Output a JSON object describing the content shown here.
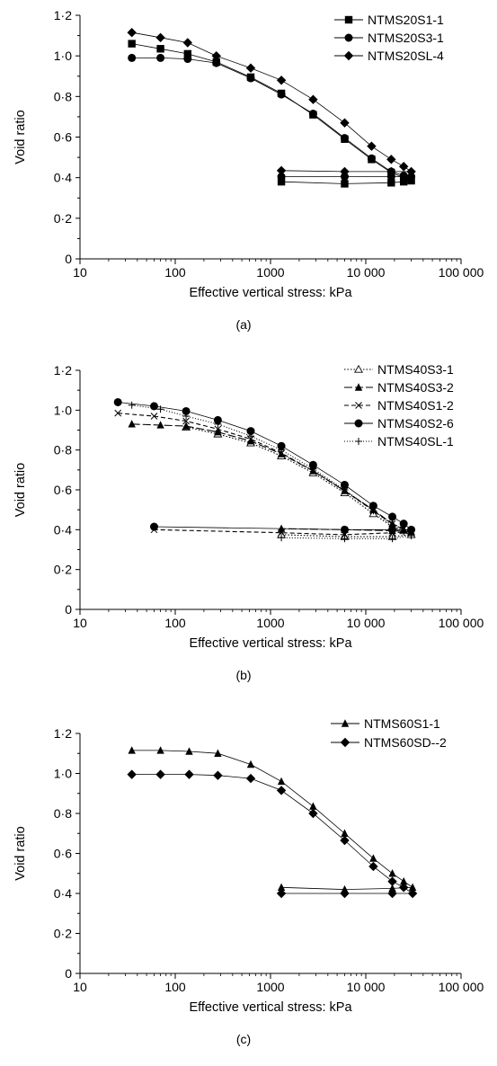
{
  "chart_data": [
    {
      "type": "line",
      "panel_label": "(a)",
      "xlabel": "Effective vertical stress: kPa",
      "ylabel": "Void ratio",
      "x_scale": "log",
      "xlim": [
        10,
        100000
      ],
      "ylim": [
        0,
        1.2
      ],
      "x_ticks": [
        10,
        100,
        1000,
        10000,
        100000
      ],
      "x_tick_labels": [
        "10",
        "100",
        "1000",
        "10 000",
        "100 000"
      ],
      "y_ticks": [
        0,
        0.2,
        0.4,
        0.6,
        0.8,
        1.0,
        1.2
      ],
      "y_tick_labels": [
        "0",
        "0·2",
        "0·4",
        "0·6",
        "0·8",
        "1·0",
        "1·2"
      ],
      "legend_position": "top-right",
      "grid": false,
      "series": [
        {
          "name": "NTMS20S1-1",
          "marker": "square",
          "dash": "",
          "points": [
            [
              35,
              1.06
            ],
            [
              70,
              1.035
            ],
            [
              135,
              1.01
            ],
            [
              270,
              0.97
            ],
            [
              620,
              0.895
            ],
            [
              1300,
              0.815
            ],
            [
              2800,
              0.71
            ],
            [
              6000,
              0.59
            ],
            [
              11500,
              0.49
            ],
            [
              18500,
              0.425
            ],
            [
              25000,
              0.4
            ],
            [
              30000,
              0.385
            ],
            [
              25000,
              0.38
            ],
            [
              18500,
              0.375
            ],
            [
              6000,
              0.37
            ],
            [
              1300,
              0.38
            ]
          ]
        },
        {
          "name": "NTMS20S3-1",
          "marker": "circle",
          "dash": "",
          "points": [
            [
              35,
              0.99
            ],
            [
              70,
              0.99
            ],
            [
              135,
              0.985
            ],
            [
              270,
              0.965
            ],
            [
              620,
              0.89
            ],
            [
              1300,
              0.81
            ],
            [
              2800,
              0.715
            ],
            [
              6000,
              0.595
            ],
            [
              11500,
              0.495
            ],
            [
              18500,
              0.43
            ],
            [
              25000,
              0.41
            ],
            [
              30000,
              0.405
            ],
            [
              18500,
              0.405
            ],
            [
              6000,
              0.405
            ],
            [
              1300,
              0.405
            ]
          ]
        },
        {
          "name": "NTMS20SL-4",
          "marker": "diamond",
          "dash": "",
          "points": [
            [
              35,
              1.115
            ],
            [
              70,
              1.09
            ],
            [
              135,
              1.065
            ],
            [
              270,
              1.0
            ],
            [
              620,
              0.94
            ],
            [
              1300,
              0.88
            ],
            [
              2800,
              0.785
            ],
            [
              6000,
              0.67
            ],
            [
              11500,
              0.555
            ],
            [
              18500,
              0.49
            ],
            [
              25000,
              0.455
            ],
            [
              30000,
              0.43
            ],
            [
              18500,
              0.43
            ],
            [
              6000,
              0.43
            ],
            [
              1300,
              0.435
            ]
          ]
        }
      ]
    },
    {
      "type": "line",
      "panel_label": "(b)",
      "xlabel": "Effective vertical stress: kPa",
      "ylabel": "Void ratio",
      "x_scale": "log",
      "xlim": [
        10,
        100000
      ],
      "ylim": [
        0,
        1.2
      ],
      "x_ticks": [
        10,
        100,
        1000,
        10000,
        100000
      ],
      "x_tick_labels": [
        "10",
        "100",
        "1000",
        "10 000",
        "100 000"
      ],
      "y_ticks": [
        0,
        0.2,
        0.4,
        0.6,
        0.8,
        1.0,
        1.2
      ],
      "y_tick_labels": [
        "0",
        "0·2",
        "0·4",
        "0·6",
        "0·8",
        "1·0",
        "1·2"
      ],
      "legend_position": "top-right",
      "grid": false,
      "series": [
        {
          "name": "NTMS40S3-1",
          "marker": "triangle-open",
          "dash": "1.5,2",
          "points": [
            [
              130,
              0.915
            ],
            [
              280,
              0.88
            ],
            [
              620,
              0.835
            ],
            [
              1300,
              0.77
            ],
            [
              2800,
              0.685
            ],
            [
              6000,
              0.585
            ],
            [
              12000,
              0.48
            ],
            [
              19000,
              0.415
            ],
            [
              25000,
              0.395
            ],
            [
              30000,
              0.375
            ],
            [
              19000,
              0.365
            ],
            [
              6000,
              0.365
            ],
            [
              1300,
              0.375
            ]
          ]
        },
        {
          "name": "NTMS40S3-2",
          "marker": "triangle",
          "dash": "9,3",
          "points": [
            [
              35,
              0.93
            ],
            [
              70,
              0.925
            ],
            [
              130,
              0.92
            ],
            [
              280,
              0.89
            ],
            [
              620,
              0.845
            ],
            [
              1300,
              0.78
            ],
            [
              2800,
              0.695
            ],
            [
              6000,
              0.595
            ],
            [
              12000,
              0.5
            ],
            [
              19000,
              0.43
            ],
            [
              25000,
              0.4
            ],
            [
              30000,
              0.39
            ],
            [
              19000,
              0.395
            ],
            [
              6000,
              0.4
            ],
            [
              1300,
              0.405
            ]
          ]
        },
        {
          "name": "NTMS40S1-2",
          "marker": "x",
          "dash": "5,3",
          "points": [
            [
              25,
              0.985
            ],
            [
              60,
              0.97
            ],
            [
              130,
              0.945
            ],
            [
              280,
              0.905
            ],
            [
              620,
              0.855
            ],
            [
              1300,
              0.785
            ],
            [
              2800,
              0.695
            ],
            [
              6000,
              0.595
            ],
            [
              12000,
              0.495
            ],
            [
              19000,
              0.43
            ],
            [
              25000,
              0.405
            ],
            [
              30000,
              0.39
            ],
            [
              19000,
              0.385
            ],
            [
              6000,
              0.375
            ],
            [
              1300,
              0.385
            ],
            [
              60,
              0.4
            ]
          ]
        },
        {
          "name": "NTMS40S2-6",
          "marker": "circle",
          "dash": "",
          "points": [
            [
              25,
              1.04
            ],
            [
              60,
              1.02
            ],
            [
              130,
              0.995
            ],
            [
              280,
              0.95
            ],
            [
              620,
              0.895
            ],
            [
              1300,
              0.82
            ],
            [
              2800,
              0.725
            ],
            [
              6000,
              0.625
            ],
            [
              12000,
              0.52
            ],
            [
              19000,
              0.465
            ],
            [
              25000,
              0.43
            ],
            [
              30000,
              0.4
            ],
            [
              19000,
              0.4
            ],
            [
              6000,
              0.4
            ],
            [
              60,
              0.415
            ]
          ]
        },
        {
          "name": "NTMS40SL-1",
          "marker": "plus",
          "dash": "1,2",
          "points": [
            [
              35,
              1.025
            ],
            [
              70,
              1.005
            ],
            [
              130,
              0.97
            ],
            [
              280,
              0.93
            ],
            [
              620,
              0.87
            ],
            [
              1300,
              0.8
            ],
            [
              2800,
              0.705
            ],
            [
              6000,
              0.6
            ],
            [
              12000,
              0.495
            ],
            [
              19000,
              0.42
            ],
            [
              25000,
              0.39
            ],
            [
              30000,
              0.37
            ],
            [
              19000,
              0.355
            ],
            [
              6000,
              0.355
            ],
            [
              1300,
              0.36
            ]
          ]
        }
      ]
    },
    {
      "type": "line",
      "panel_label": "(c)",
      "xlabel": "Effective vertical stress: kPa",
      "ylabel": "Void ratio",
      "x_scale": "log",
      "xlim": [
        10,
        100000
      ],
      "ylim": [
        0,
        1.2
      ],
      "x_ticks": [
        10,
        100,
        1000,
        10000,
        100000
      ],
      "x_tick_labels": [
        "10",
        "100",
        "1000",
        "10 000",
        "100 000"
      ],
      "y_ticks": [
        0,
        0.2,
        0.4,
        0.6,
        0.8,
        1.0,
        1.2
      ],
      "y_tick_labels": [
        "0",
        "0·2",
        "0·4",
        "0·6",
        "0·8",
        "1·0",
        "1·2"
      ],
      "legend_position": "top-right",
      "grid": false,
      "series": [
        {
          "name": "NTMS60S1-1",
          "marker": "triangle",
          "dash": "",
          "points": [
            [
              35,
              1.115
            ],
            [
              70,
              1.115
            ],
            [
              140,
              1.11
            ],
            [
              280,
              1.1
            ],
            [
              620,
              1.045
            ],
            [
              1300,
              0.96
            ],
            [
              2800,
              0.835
            ],
            [
              6000,
              0.7
            ],
            [
              12000,
              0.575
            ],
            [
              19000,
              0.5
            ],
            [
              25000,
              0.46
            ],
            [
              31000,
              0.43
            ],
            [
              19000,
              0.425
            ],
            [
              6000,
              0.42
            ],
            [
              1300,
              0.43
            ]
          ]
        },
        {
          "name": "NTMS60SD--2",
          "marker": "diamond",
          "dash": "",
          "points": [
            [
              35,
              0.995
            ],
            [
              70,
              0.995
            ],
            [
              140,
              0.995
            ],
            [
              280,
              0.99
            ],
            [
              620,
              0.975
            ],
            [
              1300,
              0.915
            ],
            [
              2800,
              0.8
            ],
            [
              6000,
              0.665
            ],
            [
              12000,
              0.535
            ],
            [
              19000,
              0.46
            ],
            [
              25000,
              0.43
            ],
            [
              31000,
              0.4
            ],
            [
              19000,
              0.4
            ],
            [
              6000,
              0.4
            ],
            [
              1300,
              0.4
            ]
          ]
        }
      ]
    }
  ]
}
